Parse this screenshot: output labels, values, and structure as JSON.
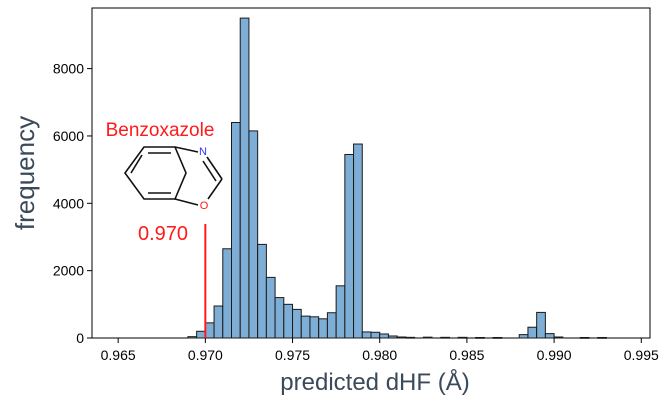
{
  "chart_data": {
    "type": "bar",
    "subtype": "histogram",
    "xlabel": "predicted dHF (Å)",
    "ylabel": "frequency",
    "xlim": [
      0.9635,
      0.9955
    ],
    "ylim": [
      0,
      9800
    ],
    "x_ticks": [
      0.965,
      0.97,
      0.975,
      0.98,
      0.985,
      0.99,
      0.995
    ],
    "x_tick_labels": [
      "0.965",
      "0.970",
      "0.975",
      "0.980",
      "0.985",
      "0.990",
      "0.995"
    ],
    "y_ticks": [
      0,
      2000,
      4000,
      6000,
      8000
    ],
    "y_tick_labels": [
      "0",
      "2000",
      "4000",
      "6000",
      "8000"
    ],
    "grid": false,
    "bar_color": "#7eaed5",
    "bar_edge_color": "#1a1a1a",
    "bins": [
      {
        "x0": 0.969,
        "x1": 0.9695,
        "count": 40
      },
      {
        "x0": 0.9695,
        "x1": 0.97,
        "count": 200
      },
      {
        "x0": 0.97,
        "x1": 0.9705,
        "count": 450
      },
      {
        "x0": 0.9705,
        "x1": 0.971,
        "count": 950
      },
      {
        "x0": 0.971,
        "x1": 0.9715,
        "count": 2650
      },
      {
        "x0": 0.9715,
        "x1": 0.972,
        "count": 6400
      },
      {
        "x0": 0.972,
        "x1": 0.9725,
        "count": 9500
      },
      {
        "x0": 0.9725,
        "x1": 0.973,
        "count": 6150
      },
      {
        "x0": 0.973,
        "x1": 0.9735,
        "count": 2780
      },
      {
        "x0": 0.9735,
        "x1": 0.974,
        "count": 1800
      },
      {
        "x0": 0.974,
        "x1": 0.9745,
        "count": 1200
      },
      {
        "x0": 0.9745,
        "x1": 0.975,
        "count": 1000
      },
      {
        "x0": 0.975,
        "x1": 0.9755,
        "count": 850
      },
      {
        "x0": 0.9755,
        "x1": 0.976,
        "count": 650
      },
      {
        "x0": 0.976,
        "x1": 0.9765,
        "count": 630
      },
      {
        "x0": 0.9765,
        "x1": 0.977,
        "count": 570
      },
      {
        "x0": 0.977,
        "x1": 0.9775,
        "count": 750
      },
      {
        "x0": 0.9775,
        "x1": 0.978,
        "count": 1550
      },
      {
        "x0": 0.978,
        "x1": 0.9785,
        "count": 5450
      },
      {
        "x0": 0.9785,
        "x1": 0.979,
        "count": 5760
      },
      {
        "x0": 0.979,
        "x1": 0.9795,
        "count": 180
      },
      {
        "x0": 0.9795,
        "x1": 0.98,
        "count": 170
      },
      {
        "x0": 0.98,
        "x1": 0.9805,
        "count": 120
      },
      {
        "x0": 0.9805,
        "x1": 0.981,
        "count": 60
      },
      {
        "x0": 0.981,
        "x1": 0.9815,
        "count": 30
      },
      {
        "x0": 0.9815,
        "x1": 0.982,
        "count": 20
      },
      {
        "x0": 0.9825,
        "x1": 0.983,
        "count": 25
      },
      {
        "x0": 0.9835,
        "x1": 0.984,
        "count": 20
      },
      {
        "x0": 0.9845,
        "x1": 0.985,
        "count": 20
      },
      {
        "x0": 0.9855,
        "x1": 0.986,
        "count": 15
      },
      {
        "x0": 0.9865,
        "x1": 0.987,
        "count": 15
      },
      {
        "x0": 0.988,
        "x1": 0.9885,
        "count": 100
      },
      {
        "x0": 0.9885,
        "x1": 0.989,
        "count": 320
      },
      {
        "x0": 0.989,
        "x1": 0.9895,
        "count": 760
      },
      {
        "x0": 0.9895,
        "x1": 0.99,
        "count": 130
      },
      {
        "x0": 0.99,
        "x1": 0.9905,
        "count": 30
      },
      {
        "x0": 0.9915,
        "x1": 0.992,
        "count": 15
      },
      {
        "x0": 0.9925,
        "x1": 0.993,
        "count": 15
      }
    ],
    "annotation": {
      "compound": "Benzoxazole",
      "value_label": "0.970",
      "marker_x": 0.97,
      "color": "#ff1a1a",
      "atoms": {
        "N": "N",
        "O": "O"
      },
      "atom_colors": {
        "N": "#3333ff",
        "O": "#ff1a1a"
      }
    }
  }
}
